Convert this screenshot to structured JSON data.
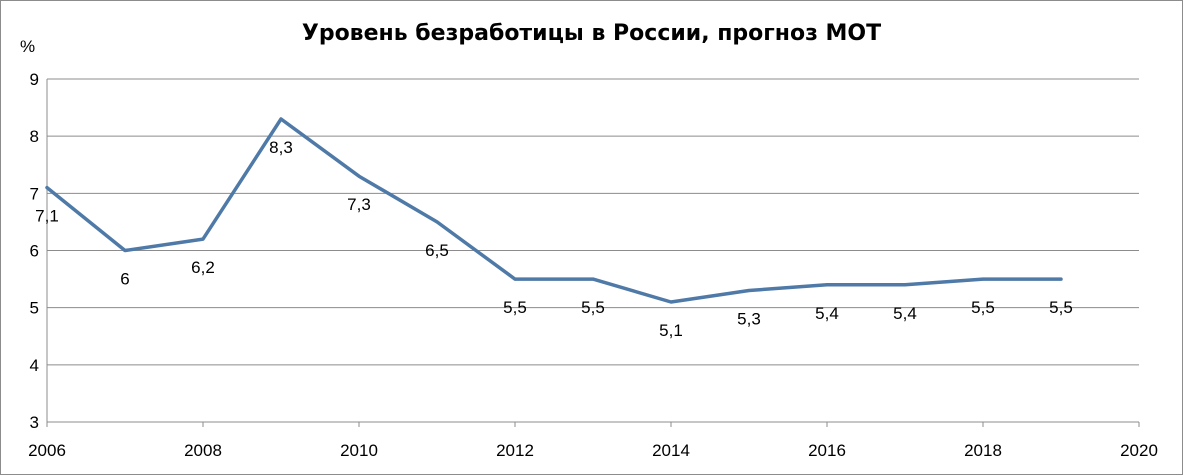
{
  "chart_data": {
    "type": "line",
    "title": "Уровень безработицы в России, прогноз МОТ",
    "ylabel": "%",
    "xlabel": "",
    "xlim": [
      2006,
      2020
    ],
    "ylim": [
      3,
      9
    ],
    "x_ticks": [
      "2006",
      "2008",
      "2010",
      "2012",
      "2014",
      "2016",
      "2018",
      "2020"
    ],
    "y_ticks": [
      "3",
      "4",
      "5",
      "6",
      "7",
      "8",
      "9"
    ],
    "grid": "horizontal",
    "legend": "none",
    "color": "#4f7aa8",
    "series": [
      {
        "x": [
          2006,
          2007,
          2008,
          2009,
          2010,
          2011,
          2012,
          2013,
          2014,
          2015,
          2016,
          2017,
          2018,
          2019
        ],
        "values": [
          7.1,
          6,
          6.2,
          8.3,
          7.3,
          6.5,
          5.5,
          5.5,
          5.1,
          5.3,
          5.4,
          5.4,
          5.5,
          5.5
        ],
        "labels": [
          "7,1",
          "6",
          "6,2",
          "8,3",
          "7,3",
          "6,5",
          "5,5",
          "5,5",
          "5,1",
          "5,3",
          "5,4",
          "5,4",
          "5,5",
          "5,5"
        ]
      }
    ]
  }
}
